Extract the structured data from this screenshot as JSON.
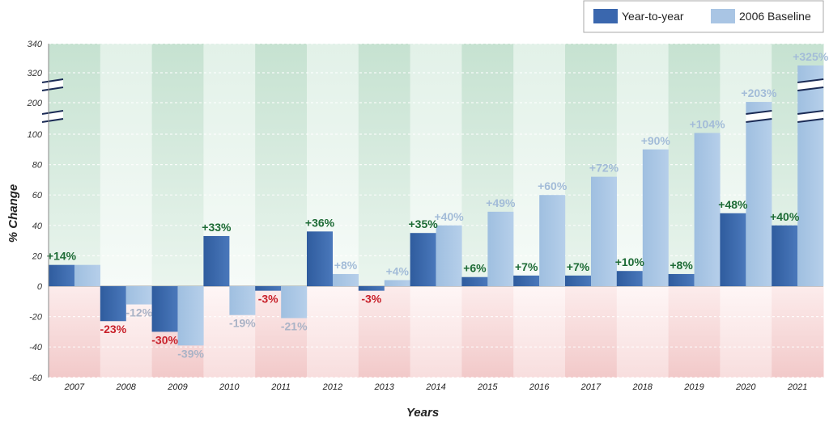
{
  "chart_data": {
    "type": "bar",
    "title": "",
    "xlabel": "Years",
    "ylabel": "% Change",
    "categories": [
      "2007",
      "2008",
      "2009",
      "2010",
      "2011",
      "2012",
      "2013",
      "2014",
      "2015",
      "2016",
      "2017",
      "2018",
      "2019",
      "2020",
      "2021"
    ],
    "series": [
      {
        "name": "Year-to-year",
        "values": [
          14,
          -23,
          -30,
          33,
          -3,
          36,
          -3,
          35,
          6,
          7,
          7,
          10,
          8,
          48,
          40
        ],
        "labels": [
          "+14%",
          "-23%",
          "-30%",
          "+33%",
          "-3%",
          "+36%",
          "-3%",
          "+35%",
          "+6%",
          "+7%",
          "+7%",
          "+10%",
          "+8%",
          "+48%",
          "+40%"
        ]
      },
      {
        "name": "2006 Baseline",
        "values": [
          14,
          -12,
          -39,
          -19,
          -21,
          8,
          4,
          40,
          49,
          60,
          72,
          90,
          104,
          203,
          325
        ],
        "labels": [
          "",
          "-12%",
          "-39%",
          "-19%",
          "-21%",
          "+8%",
          "+4%",
          "+40%",
          "+49%",
          "+60%",
          "+72%",
          "+90%",
          "+104%",
          "+203%",
          "+325%"
        ]
      }
    ],
    "yticks": [
      "340",
      "320",
      "200",
      "100",
      "80",
      "60",
      "40",
      "20",
      "0",
      "-20",
      "-40",
      "-60"
    ],
    "ylim": [
      -60,
      340
    ],
    "axis_break": true,
    "legend_position": "top-right",
    "colors": {
      "year_to_year": "#3a67ae",
      "baseline": "#a9c5e4",
      "positive_label": "#1d6b35",
      "negative_label": "#c8202a",
      "baseline_label": "#a3bcd8",
      "baseline_negative_label": "#aab3c6",
      "positive_band": "#d4e9dd",
      "negative_band": "#f6d4d4"
    }
  }
}
